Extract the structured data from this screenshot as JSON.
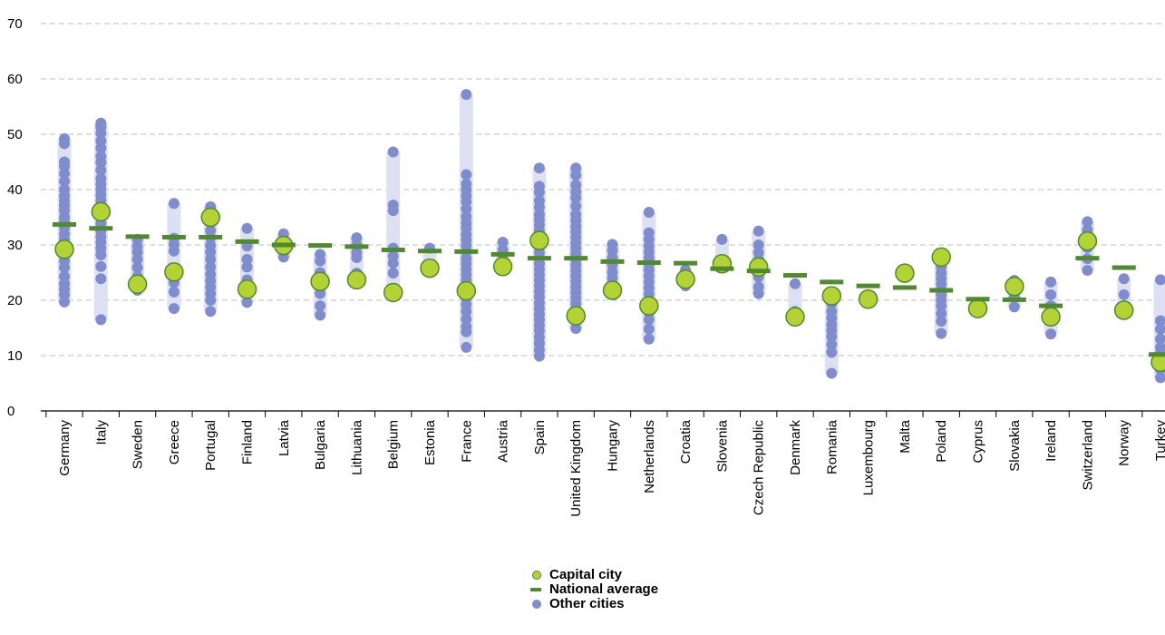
{
  "colors": {
    "range_band": "#dde0f2",
    "other_city": "#7f8ccd",
    "capital": "#b3d335",
    "capital_stroke": "#4f8a2c",
    "national": "#4f8a2c",
    "grid": "#bfbfbf",
    "axis": "#000000"
  },
  "legend": {
    "capital": "Capital city",
    "national": "National average",
    "other": "Other cities"
  },
  "chart_data": {
    "type": "scatter",
    "title": "",
    "xlabel": "",
    "ylabel": "",
    "ylim": [
      0,
      70
    ],
    "yticks": [
      0,
      10,
      20,
      30,
      40,
      50,
      60,
      70
    ],
    "grid": true,
    "legend_position": "bottom-center",
    "categories": [
      "Germany",
      "Italy",
      "Sweden",
      "Greece",
      "Portugal",
      "Finland",
      "Latvia",
      "Bulgaria",
      "Lithuania",
      "Belgium",
      "Estonia",
      "France",
      "Austria",
      "Spain",
      "United Kingdom",
      "Hungary",
      "Netherlands",
      "Croatia",
      "Slovenia",
      "Czech Republic",
      "Denmark",
      "Romania",
      "Luxembourg",
      "Malta",
      "Poland",
      "Cyprus",
      "Slovakia",
      "Ireland",
      "Switzerland",
      "Norway",
      "Turkey"
    ],
    "series": [
      {
        "name": "National average",
        "values": [
          33.7,
          33.0,
          31.5,
          31.4,
          31.4,
          30.6,
          30.0,
          29.9,
          29.7,
          29.1,
          28.9,
          28.8,
          28.3,
          27.6,
          27.6,
          27.0,
          26.8,
          26.7,
          25.7,
          25.3,
          24.5,
          23.3,
          22.6,
          22.3,
          21.8,
          20.2,
          20.1,
          19.0,
          27.6,
          25.9,
          10.2
        ]
      },
      {
        "name": "Capital city",
        "values": [
          29.2,
          36.0,
          22.9,
          25.1,
          35.0,
          22.0,
          29.9,
          23.4,
          23.7,
          21.4,
          25.8,
          21.7,
          26.1,
          30.8,
          17.2,
          21.8,
          19.0,
          23.8,
          26.6,
          26.0,
          17.0,
          20.8,
          20.2,
          24.9,
          27.8,
          18.5,
          22.5,
          17.0,
          30.7,
          18.2,
          8.8
        ]
      },
      {
        "name": "Other cities",
        "points": [
          [
            49.2,
            48.3,
            45.0,
            44.2,
            42.9,
            41.5,
            40.0,
            38.9,
            38.0,
            37.1,
            36.2,
            35.0,
            34.2,
            33.1,
            32.0,
            31.0,
            30.0,
            28.4,
            27.1,
            25.9,
            24.3,
            23.0,
            22.0,
            21.0,
            19.7
          ],
          [
            52.0,
            51.3,
            50.2,
            48.8,
            47.5,
            46.0,
            44.9,
            43.5,
            42.0,
            41.0,
            40.0,
            39.0,
            38.0,
            36.8,
            35.0,
            33.9,
            32.6,
            31.5,
            30.5,
            29.4,
            28.2,
            26.1,
            23.9,
            16.5
          ],
          [
            31.0,
            29.7,
            28.7,
            27.4,
            25.9,
            24.3,
            22.9,
            21.8
          ],
          [
            37.5,
            31.2,
            30.1,
            28.9,
            24.6,
            23.2,
            21.5,
            18.5
          ],
          [
            36.9,
            34.1,
            32.6,
            31.3,
            29.9,
            28.7,
            27.4,
            26.0,
            24.7,
            23.5,
            22.4,
            21.2,
            20.0,
            18.0
          ],
          [
            33.0,
            29.8,
            27.4,
            26.0,
            23.7,
            21.2,
            19.6
          ],
          [
            32.0,
            29.7,
            27.8
          ],
          [
            28.3,
            27.1,
            25.0,
            23.5,
            21.2,
            19.0,
            17.3
          ],
          [
            31.3,
            30.0,
            28.6,
            27.7,
            24.9
          ],
          [
            46.8,
            37.2,
            36.2,
            29.4,
            28.0,
            26.7,
            24.9
          ],
          [
            29.4,
            25.1
          ],
          [
            57.2,
            42.7,
            41.0,
            40.0,
            38.9,
            37.8,
            36.5,
            35.1,
            34.0,
            33.0,
            31.9,
            30.9,
            29.9,
            28.8,
            27.6,
            26.6,
            25.6,
            24.6,
            23.6,
            22.5,
            21.4,
            20.3,
            19.2,
            18.0,
            16.6,
            15.2,
            14.3,
            11.5
          ],
          [
            30.5,
            29.1,
            27.3
          ],
          [
            43.9,
            40.6,
            39.5,
            38.0,
            36.8,
            35.5,
            34.6,
            33.6,
            32.6,
            31.6,
            30.6,
            29.6,
            28.6,
            27.6,
            26.6,
            25.6,
            24.6,
            23.6,
            22.6,
            21.6,
            20.6,
            19.5,
            18.5,
            17.5,
            16.5,
            15.5,
            14.5,
            13.3,
            12.2,
            11.0,
            9.9
          ],
          [
            43.9,
            42.6,
            40.8,
            39.6,
            38.5,
            37.0,
            35.5,
            34.4,
            33.4,
            32.4,
            31.4,
            30.4,
            29.4,
            28.4,
            27.4,
            26.4,
            25.4,
            24.4,
            23.4,
            22.4,
            21.4,
            20.4,
            19.4,
            18.4,
            17.4,
            16.4,
            14.9
          ],
          [
            30.1,
            29.0,
            27.7,
            26.4,
            25.1,
            24.0,
            22.9,
            21.1
          ],
          [
            35.9,
            32.2,
            31.0,
            29.8,
            28.7,
            27.6,
            26.5,
            25.5,
            24.4,
            23.3,
            22.2,
            21.1,
            20.0,
            18.9,
            17.8,
            16.5,
            14.8,
            13.0
          ],
          [
            25.5,
            24.1,
            22.6
          ],
          [
            31.0,
            27.0
          ],
          [
            32.5,
            30.0,
            28.6,
            27.3,
            25.6,
            24.2,
            22.4,
            21.2
          ],
          [
            23.0,
            18.0
          ],
          [
            20.9,
            19.4,
            18.0,
            16.8,
            15.6,
            14.5,
            13.4,
            12.0,
            10.6,
            6.8
          ],
          [],
          [],
          [
            27.2,
            26.0,
            24.9,
            23.9,
            22.9,
            21.9,
            21.0,
            20.0,
            19.0,
            17.6,
            16.2,
            14.0
          ],
          [
            18.5
          ],
          [
            23.6,
            20.6,
            18.8
          ],
          [
            23.3,
            21.0,
            19.0,
            13.9
          ],
          [
            34.2,
            32.7,
            31.1,
            29.5,
            27.5,
            25.4
          ],
          [
            23.9,
            21.0,
            19.0,
            18.0
          ],
          [
            23.7,
            16.3,
            14.8,
            13.0,
            11.5,
            10.5,
            9.5,
            8.5,
            7.5,
            6.0
          ]
        ]
      }
    ]
  }
}
